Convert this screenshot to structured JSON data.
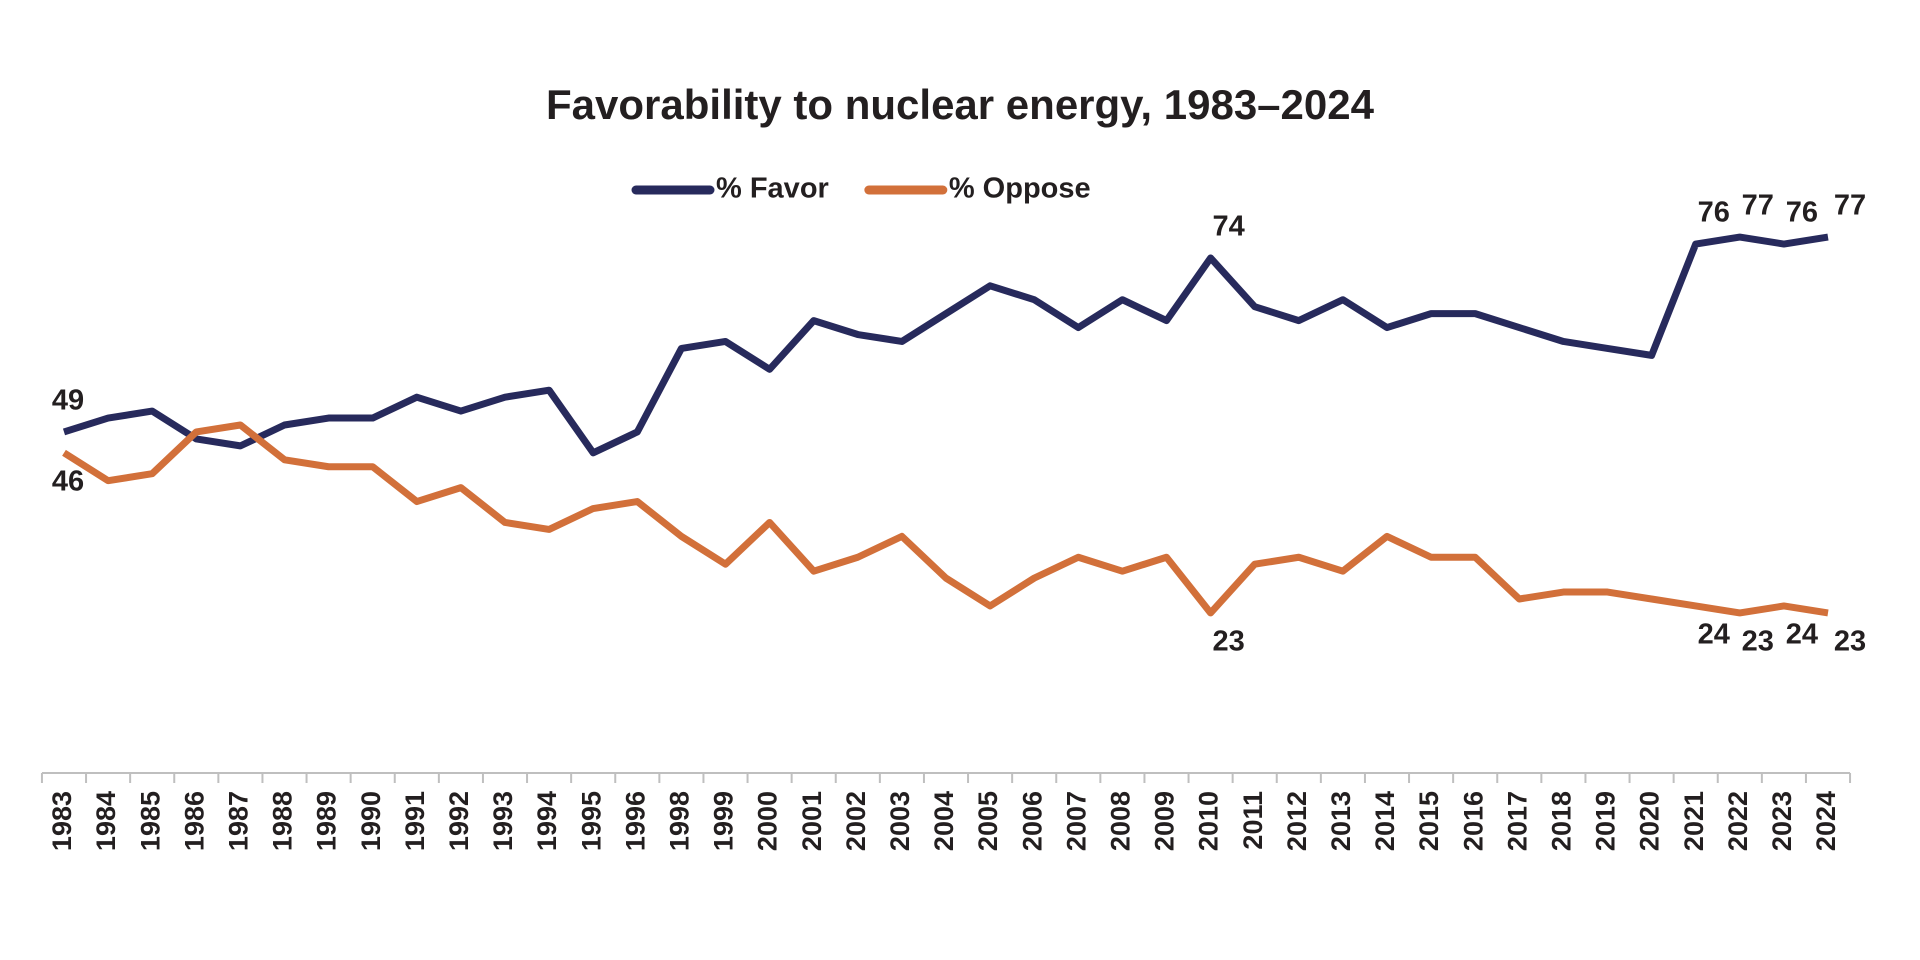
{
  "chart_data": {
    "type": "line",
    "title": "Favorability to nuclear energy, 1983–2024",
    "categories": [
      "1983",
      "1984",
      "1985",
      "1986",
      "1987",
      "1988",
      "1989",
      "1990",
      "1991",
      "1992",
      "1993",
      "1994",
      "1995",
      "1996",
      "1998",
      "1999",
      "2000",
      "2001",
      "2002",
      "2003",
      "2004",
      "2005",
      "2006",
      "2007",
      "2008",
      "2009",
      "2010",
      "2011",
      "2012",
      "2013",
      "2014",
      "2015",
      "2016",
      "2017",
      "2018",
      "2019",
      "2020",
      "2021",
      "2022",
      "2023",
      "2024"
    ],
    "ylim": [
      0,
      100
    ],
    "series": [
      {
        "name": "% Favor",
        "color": "#272a5c",
        "values": [
          49,
          51,
          52,
          48,
          47,
          50,
          51,
          51,
          54,
          52,
          54,
          55,
          46,
          49,
          61,
          62,
          58,
          65,
          63,
          62,
          66,
          70,
          68,
          64,
          68,
          65,
          74,
          67,
          65,
          68,
          64,
          66,
          66,
          64,
          62,
          61,
          60,
          76,
          77,
          76,
          77
        ],
        "value_labels": [
          "49",
          null,
          null,
          null,
          null,
          null,
          null,
          null,
          null,
          null,
          null,
          null,
          null,
          null,
          null,
          null,
          null,
          null,
          null,
          null,
          null,
          null,
          null,
          null,
          null,
          null,
          "74",
          null,
          null,
          null,
          null,
          null,
          null,
          null,
          null,
          null,
          null,
          "76",
          "77",
          "76",
          "77"
        ]
      },
      {
        "name": "% Oppose",
        "color": "#d2703a",
        "values": [
          46,
          42,
          43,
          49,
          50,
          45,
          44,
          44,
          39,
          41,
          36,
          35,
          38,
          39,
          34,
          30,
          36,
          29,
          31,
          34,
          28,
          24,
          28,
          31,
          29,
          31,
          23,
          30,
          31,
          29,
          34,
          31,
          31,
          25,
          26,
          26,
          25,
          24,
          23,
          24,
          23
        ],
        "value_labels": [
          "46",
          null,
          null,
          null,
          null,
          null,
          null,
          null,
          null,
          null,
          null,
          null,
          null,
          null,
          null,
          null,
          null,
          null,
          null,
          null,
          null,
          null,
          null,
          null,
          null,
          null,
          "23",
          null,
          null,
          null,
          null,
          null,
          null,
          null,
          null,
          null,
          null,
          "24",
          "23",
          "24",
          "23"
        ]
      }
    ]
  }
}
